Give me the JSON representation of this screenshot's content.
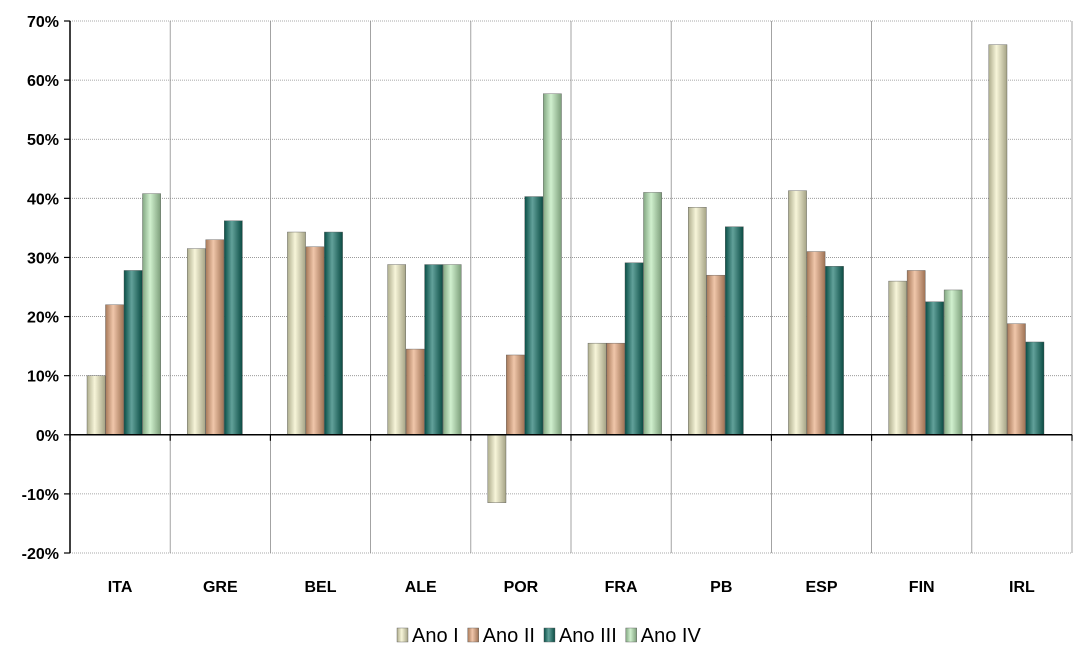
{
  "chart_data": {
    "type": "bar",
    "categories": [
      "ITA",
      "GRE",
      "BEL",
      "ALE",
      "POR",
      "FRA",
      "PB",
      "ESP",
      "FIN",
      "IRL"
    ],
    "series": [
      {
        "name": "Ano I",
        "color": "#f2f0c4",
        "values": [
          10,
          31.5,
          34.3,
          28.8,
          -11.5,
          15.5,
          38.5,
          41.3,
          26,
          66
        ]
      },
      {
        "name": "Ano II",
        "color": "#e8a87c",
        "values": [
          22,
          33,
          31.8,
          14.5,
          13.5,
          15.5,
          27,
          31,
          27.8,
          18.8
        ]
      },
      {
        "name": "Ano III",
        "color": "#0e6e63",
        "values": [
          27.8,
          36.2,
          34.3,
          28.8,
          40.3,
          29.1,
          35.2,
          28.5,
          22.5,
          15.7
        ]
      },
      {
        "name": "Ano IV",
        "color": "#b6e8b4",
        "values": [
          40.8,
          null,
          null,
          28.8,
          57.7,
          41,
          null,
          null,
          24.5,
          null
        ]
      }
    ],
    "yticks": [
      "70%",
      "60%",
      "50%",
      "40%",
      "30%",
      "20%",
      "10%",
      "0%",
      "-10%",
      "-20%"
    ],
    "ylim": [
      -20,
      70
    ],
    "title": "",
    "xlabel": "",
    "ylabel": "",
    "grid": true,
    "legend_position": "bottom"
  }
}
